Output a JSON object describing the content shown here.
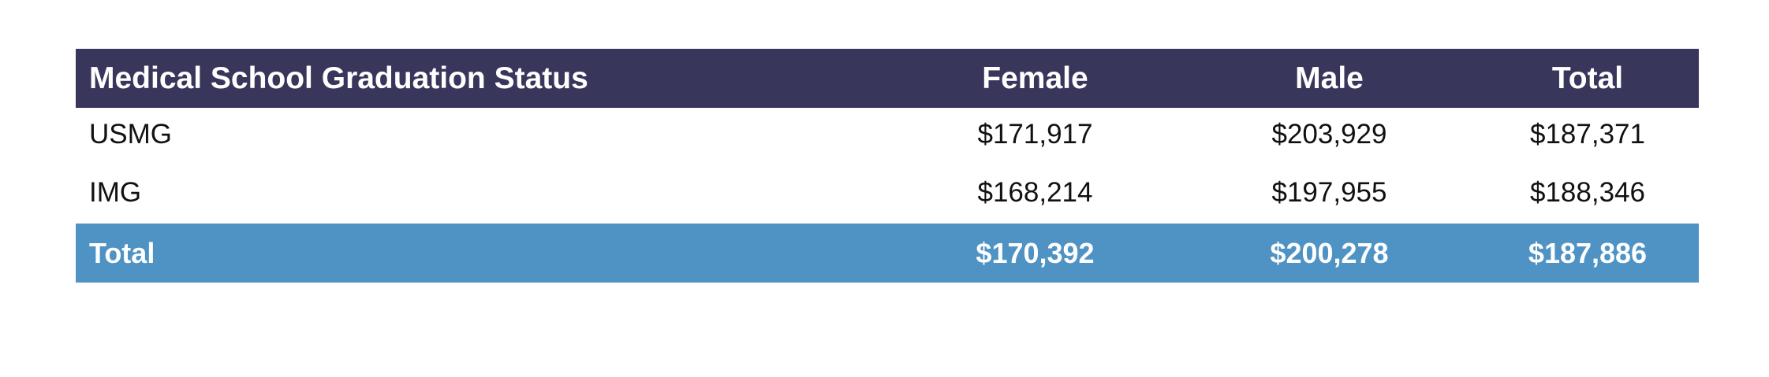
{
  "chart_data": {
    "type": "table",
    "columns": [
      "Medical School Graduation Status",
      "Female",
      "Male",
      "Total"
    ],
    "rows": [
      [
        "USMG",
        "$171,917",
        "$203,929",
        "$187,371"
      ],
      [
        "IMG",
        "$168,214",
        "$197,955",
        "$188,346"
      ]
    ],
    "total_row": [
      "Total",
      "$170,392",
      "$200,278",
      "$187,886"
    ]
  },
  "colors": {
    "header_bg": "#39365c",
    "total_bg": "#4f93c5"
  }
}
